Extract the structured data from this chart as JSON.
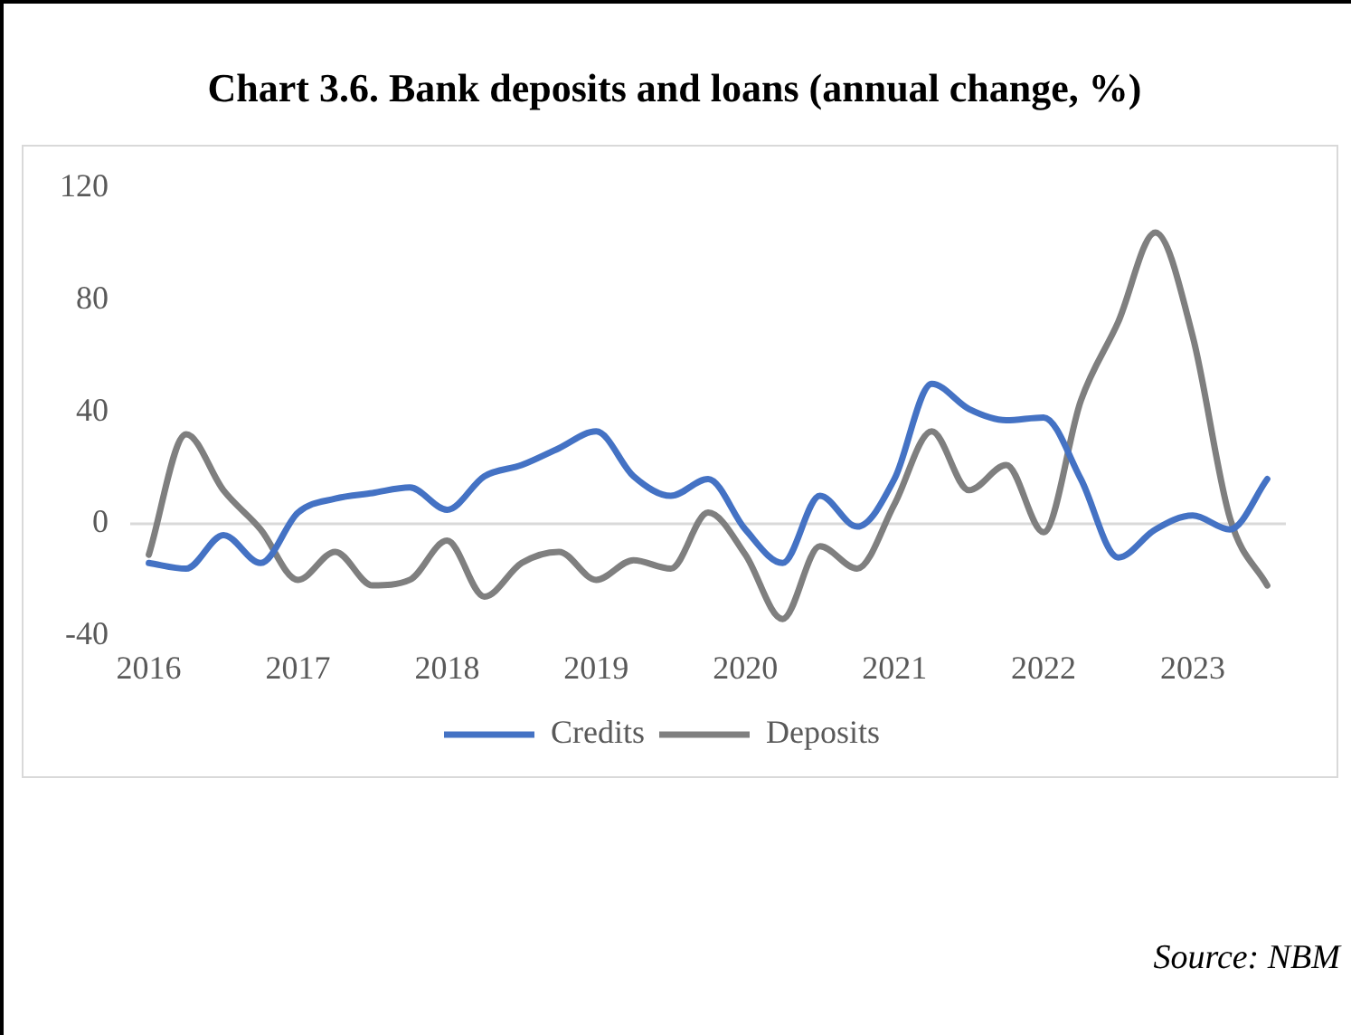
{
  "chart_data": {
    "type": "line",
    "title": "Chart 3.6. Bank deposits and loans (annual change, %)",
    "categories": [
      "2016",
      null,
      null,
      null,
      "2017",
      null,
      null,
      null,
      "2018",
      null,
      null,
      null,
      "2019",
      null,
      null,
      null,
      "2020",
      null,
      null,
      null,
      "2021",
      null,
      null,
      null,
      "2022",
      null,
      null,
      null,
      "2023",
      null,
      null
    ],
    "series": [
      {
        "name": "Credits",
        "color": "#4472c4",
        "values": [
          -14,
          -16,
          -4,
          -14,
          4,
          9,
          11,
          13,
          5,
          17,
          21,
          27,
          33,
          17,
          10,
          16,
          -2,
          -14,
          10,
          -1,
          16,
          50,
          41,
          37,
          38,
          16,
          -12,
          -2,
          3,
          -2,
          16
        ]
      },
      {
        "name": "Deposits",
        "color": "#7f7f7f",
        "values": [
          -11,
          32,
          12,
          -2,
          -20,
          -10,
          -22,
          -20,
          -6,
          -26,
          -14,
          -10,
          -20,
          -13,
          -16,
          4,
          -11,
          -34,
          -8,
          -16,
          7,
          33,
          12,
          21,
          -3,
          44,
          72,
          104,
          67,
          2,
          -22
        ]
      }
    ],
    "ylim": [
      -40,
      120
    ],
    "yticks": [
      -40,
      0,
      40,
      80,
      120
    ],
    "grid": false,
    "legend": "bottom",
    "marker": "none",
    "line_style": "solid",
    "ref_lines": [
      {
        "axis": "y",
        "value": 0,
        "color": "#d9d9d9"
      }
    ],
    "annotations": [
      "Source: NBM"
    ]
  }
}
